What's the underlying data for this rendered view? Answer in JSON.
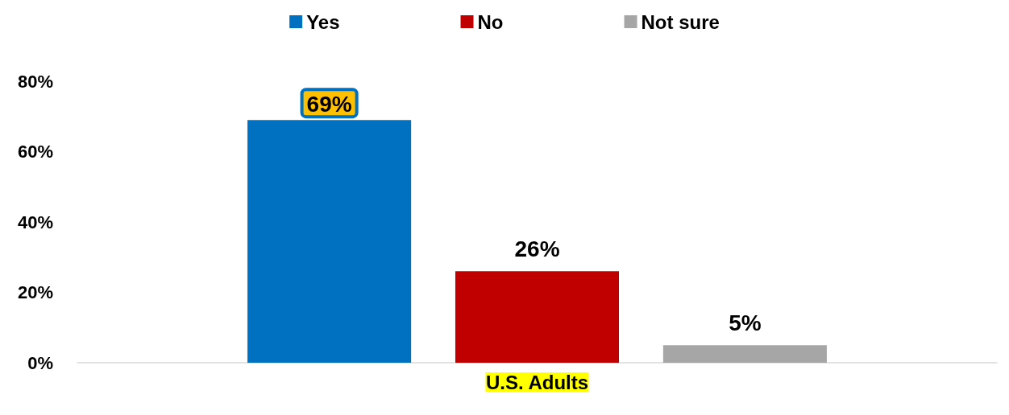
{
  "chart_data": {
    "type": "bar",
    "categories": [
      "U.S. Adults"
    ],
    "series": [
      {
        "name": "Yes",
        "color": "#0070c0",
        "values": [
          69
        ],
        "value_labels": [
          "69%"
        ]
      },
      {
        "name": "No",
        "color": "#c00000",
        "values": [
          26
        ],
        "value_labels": [
          "26%"
        ]
      },
      {
        "name": "Not sure",
        "color": "#a6a6a6",
        "values": [
          5
        ],
        "value_labels": [
          "5%"
        ]
      }
    ],
    "ylim": [
      0,
      80
    ],
    "yticks": [
      {
        "value": 0,
        "label": "0%"
      },
      {
        "value": 20,
        "label": "20%"
      },
      {
        "value": 40,
        "label": "40%"
      },
      {
        "value": 60,
        "label": "60%"
      },
      {
        "value": 80,
        "label": "80%"
      }
    ],
    "grid": false,
    "legend": "top"
  }
}
